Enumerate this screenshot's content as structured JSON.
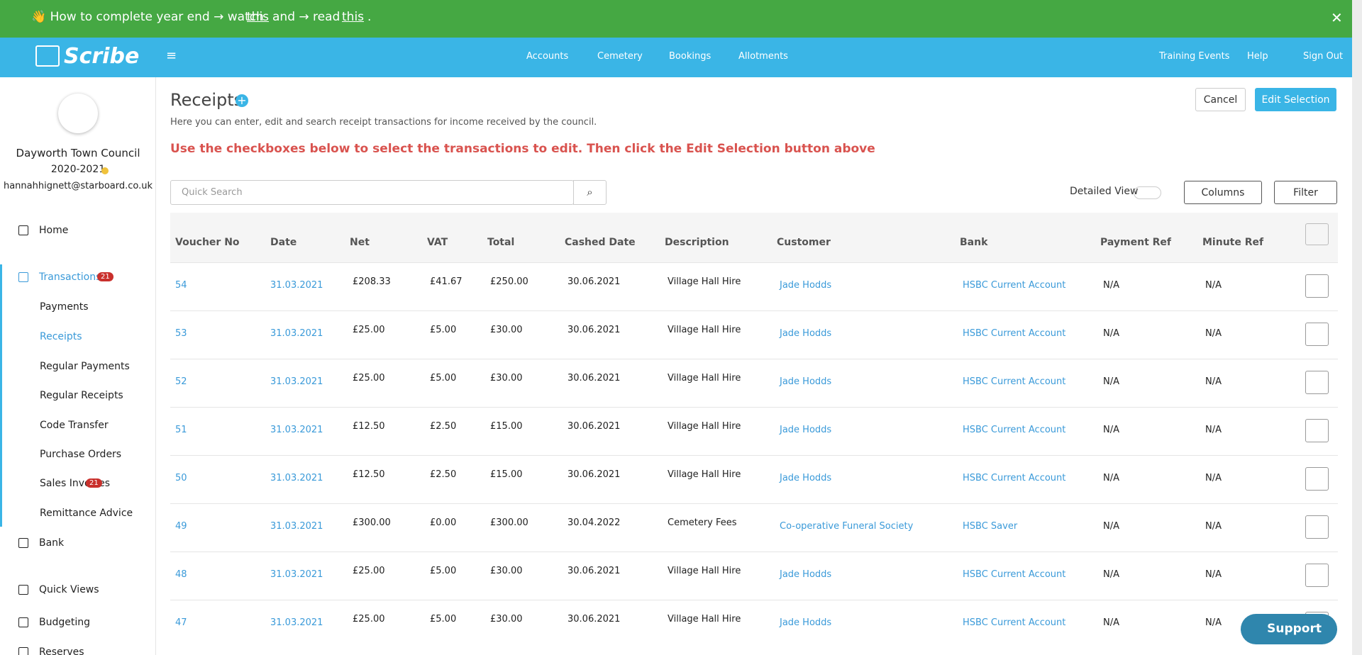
{
  "banner": {
    "parts": [
      "👋 How to complete year end → watch",
      "this",
      "and → read",
      "this",
      "."
    ]
  },
  "nav": {
    "logo": "Scribe",
    "center": [
      "Accounts",
      "Cemetery",
      "Bookings",
      "Allotments"
    ],
    "right": [
      "Training Events",
      "Help",
      "Sign Out"
    ]
  },
  "sidebar": {
    "council": "Dayworth Town Council",
    "year": "2020-2021",
    "email": "hannahhignett@starboard.co.uk",
    "items": [
      {
        "label": "Home"
      },
      {
        "label": "Transactions",
        "badge": "21"
      },
      {
        "label": "Payments"
      },
      {
        "label": "Receipts"
      },
      {
        "label": "Regular Payments"
      },
      {
        "label": "Regular Receipts"
      },
      {
        "label": "Code Transfer"
      },
      {
        "label": "Purchase Orders"
      },
      {
        "label": "Sales Invoices",
        "badge": "21"
      },
      {
        "label": "Remittance Advice"
      },
      {
        "label": "Bank"
      },
      {
        "label": "Quick Views"
      },
      {
        "label": "Budgeting"
      },
      {
        "label": "Reserves"
      }
    ]
  },
  "header": {
    "title": "Receipts",
    "description": "Here you can enter, edit and search receipt transactions for income received by the council.",
    "instruction": "Use the checkboxes below to select the transactions to edit. Then click the Edit Selection button above",
    "cancel": "Cancel",
    "edit": "Edit Selection"
  },
  "toolbar": {
    "search": "Quick Search",
    "detailed": "Detailed View",
    "columns": "Columns",
    "filter": "Filter"
  },
  "table": {
    "columns": [
      "Voucher No",
      "Date",
      "Net",
      "VAT",
      "Total",
      "Cashed Date",
      "Description",
      "Customer",
      "Bank",
      "Payment Ref",
      "Minute Ref"
    ],
    "rows": [
      [
        "54",
        "31.03.2021",
        "£208.33",
        "£41.67",
        "£250.00",
        "30.06.2021",
        "Village Hall Hire",
        "Jade Hodds",
        "HSBC Current Account",
        "N/A",
        "N/A"
      ],
      [
        "53",
        "31.03.2021",
        "£25.00",
        "£5.00",
        "£30.00",
        "30.06.2021",
        "Village Hall Hire",
        "Jade Hodds",
        "HSBC Current Account",
        "N/A",
        "N/A"
      ],
      [
        "52",
        "31.03.2021",
        "£25.00",
        "£5.00",
        "£30.00",
        "30.06.2021",
        "Village Hall Hire",
        "Jade Hodds",
        "HSBC Current Account",
        "N/A",
        "N/A"
      ],
      [
        "51",
        "31.03.2021",
        "£12.50",
        "£2.50",
        "£15.00",
        "30.06.2021",
        "Village Hall Hire",
        "Jade Hodds",
        "HSBC Current Account",
        "N/A",
        "N/A"
      ],
      [
        "50",
        "31.03.2021",
        "£12.50",
        "£2.50",
        "£15.00",
        "30.06.2021",
        "Village Hall Hire",
        "Jade Hodds",
        "HSBC Current Account",
        "N/A",
        "N/A"
      ],
      [
        "49",
        "31.03.2021",
        "£300.00",
        "£0.00",
        "£300.00",
        "30.04.2022",
        "Cemetery Fees",
        "Co-operative Funeral Society",
        "HSBC Saver",
        "N/A",
        "N/A"
      ],
      [
        "48",
        "31.03.2021",
        "£25.00",
        "£5.00",
        "£30.00",
        "30.06.2021",
        "Village Hall Hire",
        "Jade Hodds",
        "HSBC Current Account",
        "N/A",
        "N/A"
      ],
      [
        "47",
        "31.03.2021",
        "£25.00",
        "£5.00",
        "£30.00",
        "30.06.2021",
        "Village Hall Hire",
        "Jade Hodds",
        "HSBC Current Account",
        "N/A",
        "N/A"
      ]
    ]
  },
  "support": "Support"
}
